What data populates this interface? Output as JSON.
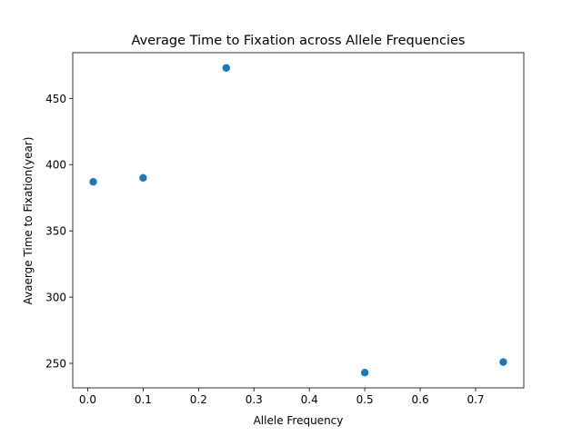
{
  "chart_data": {
    "type": "scatter",
    "title": "Average Time to Fixation across Allele Frequencies",
    "xlabel": "Allele Frequency",
    "ylabel": "Avaerge Time to Fixation(year)",
    "xlim": [
      -0.027,
      0.787
    ],
    "ylim": [
      231.5,
      484.5
    ],
    "xticks": [
      0.0,
      0.1,
      0.2,
      0.3,
      0.4,
      0.5,
      0.6,
      0.7
    ],
    "xtick_labels": [
      "0.0",
      "0.1",
      "0.2",
      "0.3",
      "0.4",
      "0.5",
      "0.6",
      "0.7"
    ],
    "yticks": [
      250,
      300,
      350,
      400,
      450
    ],
    "ytick_labels": [
      "250",
      "300",
      "350",
      "400",
      "450"
    ],
    "grid": false,
    "series": [
      {
        "color": "#1f77b4",
        "points": [
          {
            "x": 0.01,
            "y": 387
          },
          {
            "x": 0.1,
            "y": 390
          },
          {
            "x": 0.25,
            "y": 473
          },
          {
            "x": 0.5,
            "y": 243
          },
          {
            "x": 0.75,
            "y": 251
          }
        ]
      }
    ]
  }
}
